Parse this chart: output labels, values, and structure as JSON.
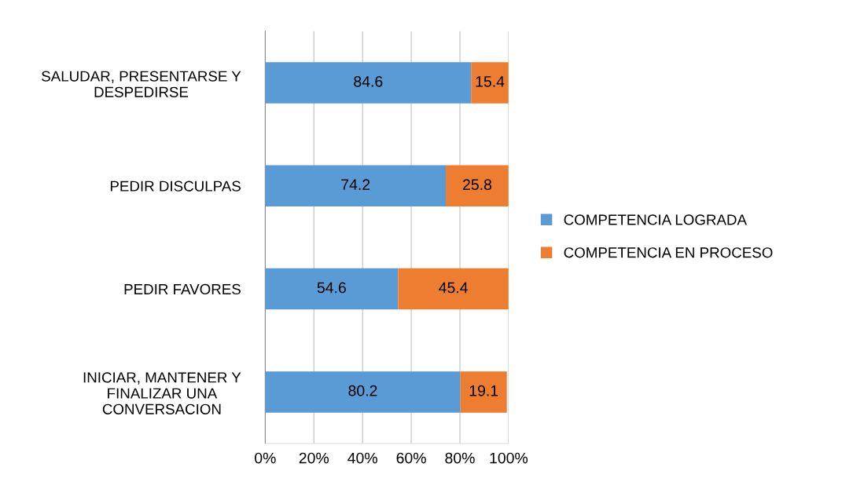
{
  "chart_data": {
    "type": "bar",
    "orientation": "horizontal",
    "stacked": true,
    "categories": [
      "SALUDAR, PRESENTARSE Y\nDESPEDIRSE",
      "PEDIR DISCULPAS",
      "PEDIR FAVORES",
      "INICIAR, MANTENER Y\nFINALIZAR UNA\nCONVERSACION"
    ],
    "series": [
      {
        "name": "COMPETENCIA LOGRADA",
        "color": "#5b9bd5",
        "values": [
          84.6,
          74.2,
          54.6,
          80.2
        ]
      },
      {
        "name": "COMPETENCIA EN PROCESO",
        "color": "#ed7d31",
        "values": [
          15.4,
          25.8,
          45.4,
          19.1
        ]
      }
    ],
    "xlim": [
      0,
      100
    ],
    "xticks": [
      {
        "value": 0,
        "label": "0%"
      },
      {
        "value": 20,
        "label": "20%"
      },
      {
        "value": 40,
        "label": "40%"
      },
      {
        "value": 60,
        "label": "60%"
      },
      {
        "value": 80,
        "label": "80%"
      },
      {
        "value": 100,
        "label": "100%"
      }
    ],
    "grid": "x",
    "legend": "right",
    "data_labels": true
  }
}
